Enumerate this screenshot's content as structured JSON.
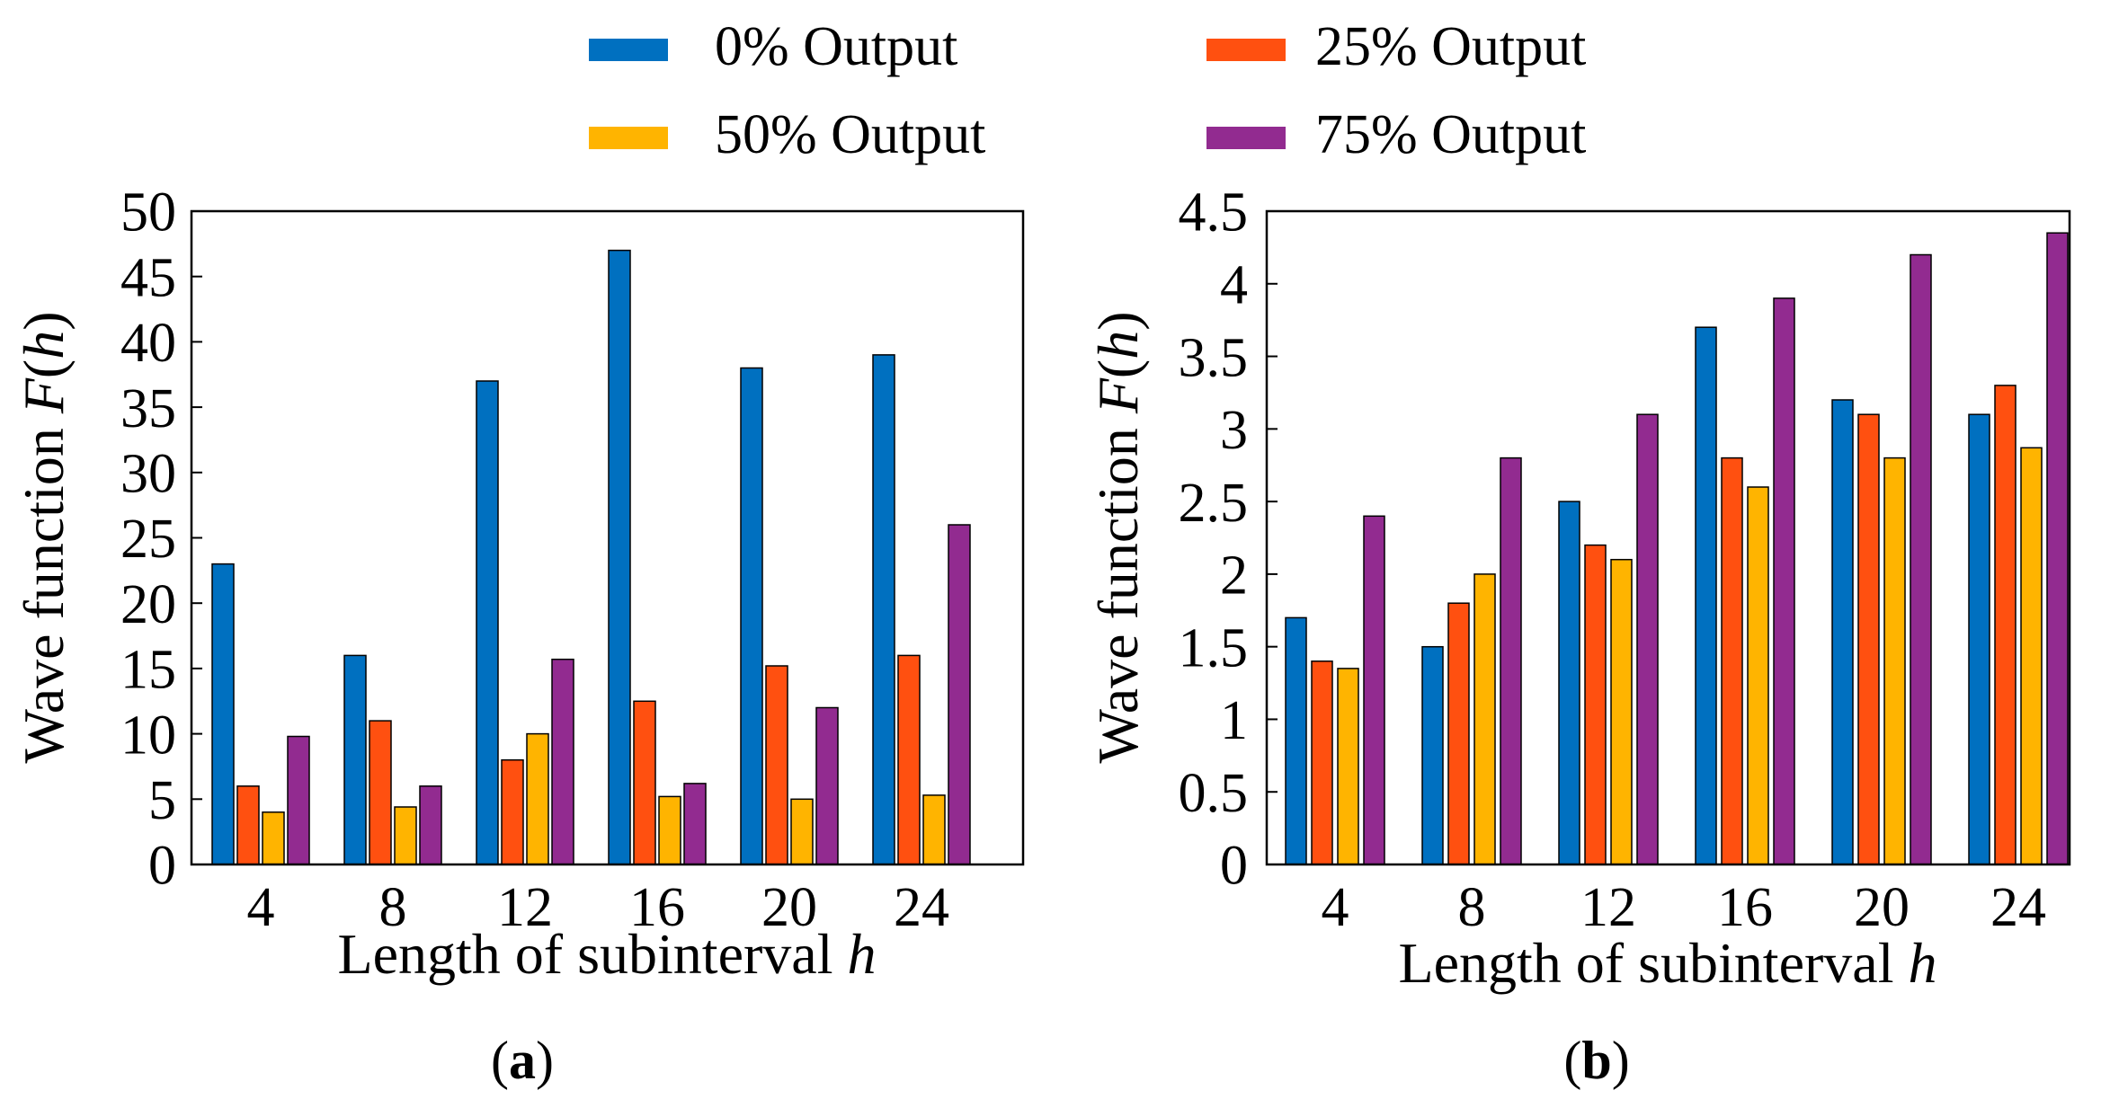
{
  "legend": [
    {
      "label": "0% Output",
      "color": "#0070C0"
    },
    {
      "label": "25% Output",
      "color": "#FF5010"
    },
    {
      "label": "50% Output",
      "color": "#FFB400"
    },
    {
      "label": "75% Output",
      "color": "#922B90"
    }
  ],
  "panel_labels": {
    "a": {
      "open": "(",
      "letter": "a",
      "close": ")"
    },
    "b": {
      "open": "(",
      "letter": "b",
      "close": ")"
    }
  },
  "chart_data": [
    {
      "type": "bar",
      "panel": "a",
      "categories": [
        "4",
        "8",
        "12",
        "16",
        "20",
        "24"
      ],
      "series": [
        {
          "name": "0% Output",
          "values": [
            23,
            16,
            37,
            47,
            38,
            39
          ]
        },
        {
          "name": "25% Output",
          "values": [
            6,
            11,
            8,
            12.5,
            15.2,
            16
          ]
        },
        {
          "name": "50% Output",
          "values": [
            4,
            4.4,
            10,
            5.2,
            5,
            5.3
          ]
        },
        {
          "name": "75% Output",
          "values": [
            9.8,
            6,
            15.7,
            6.2,
            12,
            26
          ]
        }
      ],
      "xlabel": "Length of subinterval ",
      "xlabel_var": "h",
      "ylabel": "Wave function ",
      "ylabel_var": "F",
      "ylabel_arg": "h",
      "ylim": [
        0,
        50
      ],
      "yticks": [
        "0",
        "5",
        "10",
        "15",
        "20",
        "25",
        "30",
        "35",
        "40",
        "45",
        "50"
      ],
      "yticks_values": [
        0,
        5,
        10,
        15,
        20,
        25,
        30,
        35,
        40,
        45,
        50
      ],
      "grid": false,
      "legend_position": "top"
    },
    {
      "type": "bar",
      "panel": "b",
      "categories": [
        "4",
        "8",
        "12",
        "16",
        "20",
        "24"
      ],
      "series": [
        {
          "name": "0% Output",
          "values": [
            1.7,
            1.5,
            2.5,
            3.7,
            3.2,
            3.1
          ]
        },
        {
          "name": "25% Output",
          "values": [
            1.4,
            1.8,
            2.2,
            2.8,
            3.1,
            3.3
          ]
        },
        {
          "name": "50% Output",
          "values": [
            1.35,
            2,
            2.1,
            2.6,
            2.8,
            2.87
          ]
        },
        {
          "name": "75% Output",
          "values": [
            2.4,
            2.8,
            3.1,
            3.9,
            4.2,
            4.35
          ]
        }
      ],
      "xlabel": "Length of subinterval ",
      "xlabel_var": "h",
      "ylabel": "Wave function ",
      "ylabel_var": "F",
      "ylabel_arg": "h",
      "ylim": [
        0,
        4.5
      ],
      "yticks": [
        "0",
        "0.5",
        "1",
        "1.5",
        "2",
        "2.5",
        "3",
        "3.5",
        "4",
        "4.5"
      ],
      "yticks_values": [
        0,
        0.5,
        1,
        1.5,
        2,
        2.5,
        3,
        3.5,
        4,
        4.5
      ],
      "grid": false,
      "legend_position": "top"
    }
  ]
}
